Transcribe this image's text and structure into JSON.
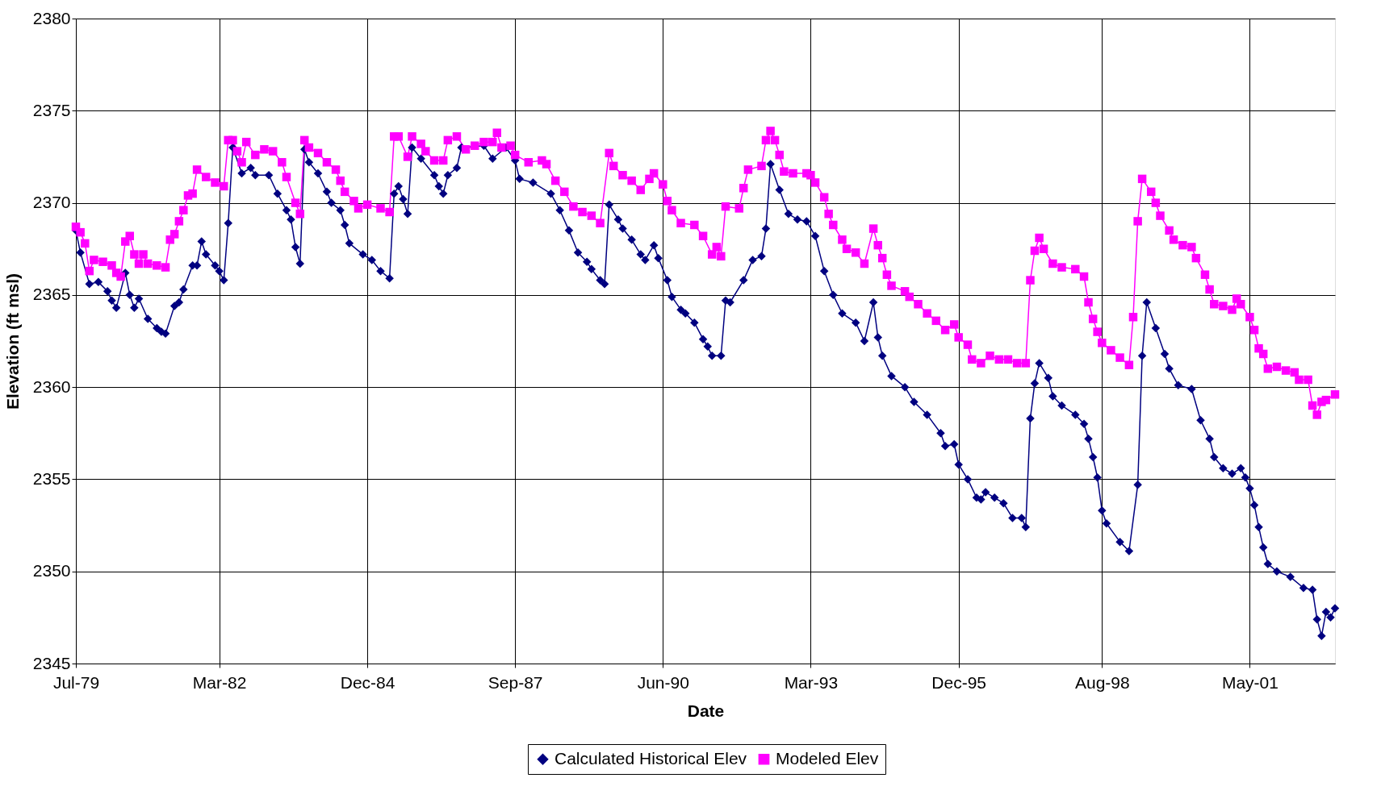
{
  "chart_data": {
    "type": "line",
    "xlabel": "Date",
    "ylabel": "Elevation (ft msl)",
    "xlim": [
      "1979-07",
      "2002-12"
    ],
    "xticks": [
      {
        "value": "1979-07",
        "label": "Jul-79"
      },
      {
        "value": "1982-03",
        "label": "Mar-82"
      },
      {
        "value": "1984-12",
        "label": "Dec-84"
      },
      {
        "value": "1987-09",
        "label": "Sep-87"
      },
      {
        "value": "1990-06",
        "label": "Jun-90"
      },
      {
        "value": "1993-03",
        "label": "Mar-93"
      },
      {
        "value": "1995-12",
        "label": "Dec-95"
      },
      {
        "value": "1998-08",
        "label": "Aug-98"
      },
      {
        "value": "2001-05",
        "label": "May-01"
      }
    ],
    "ylim": [
      2345,
      2380
    ],
    "yticks": [
      2345,
      2350,
      2355,
      2360,
      2365,
      2370,
      2375,
      2380
    ],
    "grid": true,
    "legend": "bottom",
    "line_style": "solid",
    "series": [
      {
        "name": "Calculated Historical Elev",
        "color": "#000080",
        "marker": "diamond",
        "x": [
          "1979-07",
          "1979-08",
          "1979-10",
          "1979-12",
          "1980-02",
          "1980-03",
          "1980-04",
          "1980-06",
          "1980-07",
          "1980-08",
          "1980-09",
          "1980-11",
          "1981-01",
          "1981-02",
          "1981-03",
          "1981-05",
          "1981-06",
          "1981-07",
          "1981-09",
          "1981-10",
          "1981-11",
          "1981-12",
          "1982-02",
          "1982-03",
          "1982-04",
          "1982-05",
          "1982-06",
          "1982-08",
          "1982-10",
          "1982-11",
          "1983-02",
          "1983-04",
          "1983-06",
          "1983-07",
          "1983-08",
          "1983-09",
          "1983-10",
          "1983-11",
          "1984-01",
          "1984-03",
          "1984-04",
          "1984-06",
          "1984-07",
          "1984-08",
          "1984-11",
          "1985-01",
          "1985-03",
          "1985-05",
          "1985-06",
          "1985-07",
          "1985-08",
          "1985-09",
          "1985-10",
          "1985-12",
          "1986-03",
          "1986-04",
          "1986-05",
          "1986-06",
          "1986-08",
          "1986-09",
          "1987-02",
          "1987-04",
          "1987-07",
          "1987-09",
          "1987-10",
          "1988-01",
          "1988-05",
          "1988-07",
          "1988-09",
          "1988-11",
          "1989-01",
          "1989-02",
          "1989-04",
          "1989-05",
          "1989-06",
          "1989-08",
          "1989-09",
          "1989-11",
          "1990-01",
          "1990-02",
          "1990-04",
          "1990-05",
          "1990-07",
          "1990-08",
          "1990-10",
          "1990-11",
          "1991-01",
          "1991-03",
          "1991-04",
          "1991-05",
          "1991-07",
          "1991-08",
          "1991-09",
          "1991-12",
          "1992-02",
          "1992-04",
          "1992-05",
          "1992-06",
          "1992-08",
          "1992-10",
          "1992-12",
          "1993-02",
          "1993-04",
          "1993-06",
          "1993-08",
          "1993-10",
          "1994-01",
          "1994-03",
          "1994-05",
          "1994-06",
          "1994-07",
          "1994-09",
          "1994-12",
          "1995-02",
          "1995-05",
          "1995-08",
          "1995-09",
          "1995-11",
          "1995-12",
          "1996-02",
          "1996-04",
          "1996-05",
          "1996-06",
          "1996-08",
          "1996-10",
          "1996-12",
          "1997-02",
          "1997-03",
          "1997-04",
          "1997-05",
          "1997-06",
          "1997-08",
          "1997-09",
          "1997-11",
          "1998-02",
          "1998-04",
          "1998-05",
          "1998-06",
          "1998-07",
          "1998-08",
          "1998-09",
          "1998-12",
          "1999-02",
          "1999-04",
          "1999-05",
          "1999-06",
          "1999-08",
          "1999-10",
          "1999-11",
          "2000-01",
          "2000-04",
          "2000-06",
          "2000-08",
          "2000-09",
          "2000-11",
          "2001-01",
          "2001-03",
          "2001-04",
          "2001-05",
          "2001-06",
          "2001-07",
          "2001-08",
          "2001-09",
          "2001-11",
          "2002-02",
          "2002-05",
          "2002-07",
          "2002-08",
          "2002-09",
          "2002-10",
          "2002-11",
          "2002-12"
        ],
        "values": [
          2368.5,
          2367.3,
          2365.6,
          2365.7,
          2365.2,
          2364.7,
          2364.3,
          2366.2,
          2365.0,
          2364.3,
          2364.8,
          2363.7,
          2363.2,
          2363.0,
          2362.9,
          2364.4,
          2364.6,
          2365.3,
          2366.6,
          2366.6,
          2367.9,
          2367.2,
          2366.6,
          2366.3,
          2365.8,
          2368.9,
          2373.0,
          2371.6,
          2371.9,
          2371.5,
          2371.5,
          2370.5,
          2369.6,
          2369.1,
          2367.6,
          2366.7,
          2372.9,
          2372.2,
          2371.6,
          2370.6,
          2370.0,
          2369.6,
          2368.8,
          2367.8,
          2367.2,
          2366.9,
          2366.3,
          2365.9,
          2370.5,
          2370.9,
          2370.2,
          2369.4,
          2373.0,
          2372.4,
          2371.5,
          2370.9,
          2370.5,
          2371.5,
          2371.9,
          2373.0,
          2373.1,
          2372.4,
          2373.0,
          2372.3,
          2371.3,
          2371.1,
          2370.5,
          2369.6,
          2368.5,
          2367.3,
          2366.8,
          2366.4,
          2365.8,
          2365.6,
          2369.9,
          2369.1,
          2368.6,
          2368.0,
          2367.2,
          2366.9,
          2367.7,
          2367.0,
          2365.8,
          2364.9,
          2364.2,
          2364.0,
          2363.5,
          2362.6,
          2362.2,
          2361.7,
          2361.7,
          2364.7,
          2364.6,
          2365.8,
          2366.9,
          2367.1,
          2368.6,
          2372.1,
          2370.7,
          2369.4,
          2369.1,
          2369.0,
          2368.2,
          2366.3,
          2365.0,
          2364.0,
          2363.5,
          2362.5,
          2364.6,
          2362.7,
          2361.7,
          2360.6,
          2360.0,
          2359.2,
          2358.5,
          2357.5,
          2356.8,
          2356.9,
          2355.8,
          2355.0,
          2354.0,
          2353.9,
          2354.3,
          2354.0,
          2353.7,
          2352.9,
          2352.9,
          2352.4,
          2358.3,
          2360.2,
          2361.3,
          2360.5,
          2359.5,
          2359.0,
          2358.5,
          2358.0,
          2357.2,
          2356.2,
          2355.1,
          2353.3,
          2352.6,
          2351.6,
          2351.1,
          2354.7,
          2361.7,
          2364.6,
          2363.2,
          2361.8,
          2361.0,
          2360.1,
          2359.9,
          2358.2,
          2357.2,
          2356.2,
          2355.6,
          2355.3,
          2355.6,
          2355.1,
          2354.5,
          2353.6,
          2352.4,
          2351.3,
          2350.4,
          2350.0,
          2349.7,
          2349.1,
          2349.0,
          2347.4,
          2346.5,
          2347.8,
          2347.5,
          2348.0
        ]
      },
      {
        "name": "Modeled Elev",
        "color": "#ff00ff",
        "marker": "square",
        "x": [
          "1979-07",
          "1979-08",
          "1979-09",
          "1979-10",
          "1979-11",
          "1980-01",
          "1980-03",
          "1980-04",
          "1980-05",
          "1980-06",
          "1980-07",
          "1980-08",
          "1980-09",
          "1980-10",
          "1980-11",
          "1981-01",
          "1981-03",
          "1981-04",
          "1981-05",
          "1981-06",
          "1981-07",
          "1981-08",
          "1981-09",
          "1981-10",
          "1981-12",
          "1982-02",
          "1982-04",
          "1982-05",
          "1982-06",
          "1982-07",
          "1982-08",
          "1982-09",
          "1982-11",
          "1983-01",
          "1983-03",
          "1983-05",
          "1983-06",
          "1983-08",
          "1983-09",
          "1983-10",
          "1983-11",
          "1984-01",
          "1984-03",
          "1984-05",
          "1984-06",
          "1984-07",
          "1984-09",
          "1984-10",
          "1984-12",
          "1985-03",
          "1985-05",
          "1985-06",
          "1985-07",
          "1985-09",
          "1985-10",
          "1985-12",
          "1986-01",
          "1986-03",
          "1986-05",
          "1986-06",
          "1986-08",
          "1986-10",
          "1986-12",
          "1987-02",
          "1987-04",
          "1987-05",
          "1987-06",
          "1987-08",
          "1987-09",
          "1987-12",
          "1988-03",
          "1988-04",
          "1988-06",
          "1988-08",
          "1988-10",
          "1988-12",
          "1989-02",
          "1989-04",
          "1989-06",
          "1989-07",
          "1989-09",
          "1989-11",
          "1990-01",
          "1990-03",
          "1990-04",
          "1990-06",
          "1990-07",
          "1990-08",
          "1990-10",
          "1991-01",
          "1991-03",
          "1991-05",
          "1991-06",
          "1991-07",
          "1991-08",
          "1991-11",
          "1991-12",
          "1992-01",
          "1992-04",
          "1992-05",
          "1992-06",
          "1992-07",
          "1992-08",
          "1992-09",
          "1992-11",
          "1993-02",
          "1993-03",
          "1993-04",
          "1993-06",
          "1993-07",
          "1993-08",
          "1993-10",
          "1993-11",
          "1994-01",
          "1994-03",
          "1994-05",
          "1994-06",
          "1994-07",
          "1994-08",
          "1994-09",
          "1994-12",
          "1995-01",
          "1995-03",
          "1995-05",
          "1995-07",
          "1995-09",
          "1995-11",
          "1995-12",
          "1996-02",
          "1996-03",
          "1996-05",
          "1996-07",
          "1996-09",
          "1996-11",
          "1997-01",
          "1997-03",
          "1997-04",
          "1997-05",
          "1997-06",
          "1997-07",
          "1997-09",
          "1997-11",
          "1998-02",
          "1998-04",
          "1998-05",
          "1998-06",
          "1998-07",
          "1998-08",
          "1998-10",
          "1998-12",
          "1999-02",
          "1999-03",
          "1999-04",
          "1999-05",
          "1999-07",
          "1999-08",
          "1999-09",
          "1999-11",
          "1999-12",
          "2000-02",
          "2000-04",
          "2000-05",
          "2000-07",
          "2000-08",
          "2000-09",
          "2000-11",
          "2001-01",
          "2001-02",
          "2001-03",
          "2001-05",
          "2001-06",
          "2001-07",
          "2001-08",
          "2001-09",
          "2001-11",
          "2002-01",
          "2002-03",
          "2002-04",
          "2002-06",
          "2002-07",
          "2002-08",
          "2002-09",
          "2002-10",
          "2002-12"
        ],
        "values": [
          2368.7,
          2368.4,
          2367.8,
          2366.3,
          2366.9,
          2366.8,
          2366.6,
          2366.2,
          2366.0,
          2367.9,
          2368.2,
          2367.2,
          2366.7,
          2367.2,
          2366.7,
          2366.6,
          2366.5,
          2368.0,
          2368.3,
          2369.0,
          2369.6,
          2370.4,
          2370.5,
          2371.8,
          2371.4,
          2371.1,
          2370.9,
          2373.4,
          2373.4,
          2372.8,
          2372.2,
          2373.3,
          2372.6,
          2372.9,
          2372.8,
          2372.2,
          2371.4,
          2370.0,
          2369.4,
          2373.4,
          2373.0,
          2372.7,
          2372.2,
          2371.8,
          2371.2,
          2370.6,
          2370.1,
          2369.7,
          2369.9,
          2369.7,
          2369.5,
          2373.6,
          2373.6,
          2372.5,
          2373.6,
          2373.2,
          2372.8,
          2372.3,
          2372.3,
          2373.4,
          2373.6,
          2372.9,
          2373.1,
          2373.3,
          2373.3,
          2373.8,
          2373.0,
          2373.1,
          2372.6,
          2372.2,
          2372.3,
          2372.1,
          2371.2,
          2370.6,
          2369.8,
          2369.5,
          2369.3,
          2368.9,
          2372.7,
          2372.0,
          2371.5,
          2371.2,
          2370.7,
          2371.3,
          2371.6,
          2371.0,
          2370.1,
          2369.6,
          2368.9,
          2368.8,
          2368.2,
          2367.2,
          2367.6,
          2367.1,
          2369.8,
          2369.7,
          2370.8,
          2371.8,
          2372.0,
          2373.4,
          2373.9,
          2373.4,
          2372.6,
          2371.7,
          2371.6,
          2371.6,
          2371.5,
          2371.1,
          2370.3,
          2369.4,
          2368.8,
          2368.0,
          2367.5,
          2367.3,
          2366.7,
          2368.6,
          2367.7,
          2367.0,
          2366.1,
          2365.5,
          2365.2,
          2364.9,
          2364.5,
          2364.0,
          2363.6,
          2363.1,
          2363.4,
          2362.7,
          2362.3,
          2361.5,
          2361.3,
          2361.7,
          2361.5,
          2361.5,
          2361.3,
          2361.3,
          2365.8,
          2367.4,
          2368.1,
          2367.5,
          2366.7,
          2366.5,
          2366.4,
          2366.0,
          2364.6,
          2363.7,
          2363.0,
          2362.4,
          2362.0,
          2361.6,
          2361.2,
          2363.8,
          2369.0,
          2371.3,
          2370.6,
          2370.0,
          2369.3,
          2368.5,
          2368.0,
          2367.7,
          2367.6,
          2367.0,
          2366.1,
          2365.3,
          2364.5,
          2364.4,
          2364.2,
          2364.8,
          2364.5,
          2363.8,
          2363.1,
          2362.1,
          2361.8,
          2361.0,
          2361.1,
          2360.9,
          2360.8,
          2360.4,
          2360.4,
          2359.0,
          2358.5,
          2359.2,
          2359.3,
          2359.6
        ]
      }
    ]
  }
}
